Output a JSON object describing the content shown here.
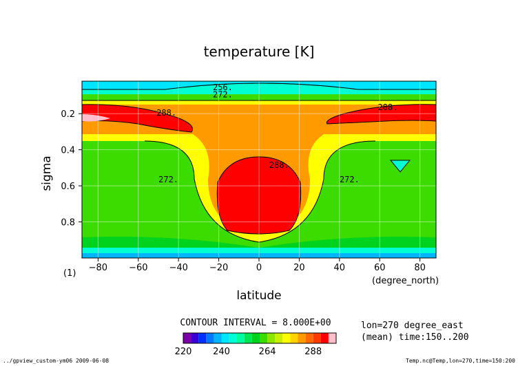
{
  "chart_data": {
    "type": "heatmap",
    "title": "temperature [K]",
    "xlabel": "latitude",
    "xunit": "(degree_north)",
    "ylabel": "sigma",
    "y_corner_label": "(1)",
    "xlim": [
      -88,
      88
    ],
    "ylim": [
      1.0,
      0.02
    ],
    "x_ticks": [
      -80,
      -60,
      -40,
      -20,
      0,
      20,
      40,
      60,
      80
    ],
    "x_tick_labels": [
      "−80",
      "−60",
      "−40",
      "−20",
      "0",
      "20",
      "40",
      "60",
      "80"
    ],
    "y_ticks": [
      0.2,
      0.4,
      0.6,
      0.8
    ],
    "y_tick_labels": [
      "0.2",
      "0.4",
      "0.6",
      "0.8"
    ],
    "grid": true,
    "contour_interval_text": "CONTOUR INTERVAL = 8.000E+00",
    "info_lines": [
      "lon=270 degree_east",
      "(mean) time:150..200"
    ],
    "footer_left": "../gpview_custom-ym06  2009-06-08",
    "footer_right": "Temp.nc@Temp,lon=270,time=150:200",
    "colorbar": {
      "levels": [
        220,
        224,
        228,
        232,
        236,
        240,
        244,
        248,
        252,
        256,
        260,
        264,
        268,
        272,
        276,
        280,
        284,
        288,
        292,
        296
      ],
      "colors": [
        "#7a00aa",
        "#3b00d6",
        "#0030ff",
        "#0078ff",
        "#00b4ff",
        "#00e6ff",
        "#00ffd2",
        "#00ff9c",
        "#00e650",
        "#00d21e",
        "#3cdc00",
        "#8ce600",
        "#c8f000",
        "#ffff00",
        "#ffd200",
        "#ff9a00",
        "#ff6a00",
        "#ff3a00",
        "#ff0000",
        "#ffc0cb"
      ],
      "tick_labels": [
        "220",
        "240",
        "264",
        "288"
      ],
      "tick_values": [
        220,
        240,
        264,
        288
      ]
    },
    "contour_labels": [
      {
        "text": "256.",
        "x": -18,
        "y": 0.07
      },
      {
        "text": "272.",
        "x": -18,
        "y": 0.11
      },
      {
        "text": "288.",
        "x": -46,
        "y": 0.21
      },
      {
        "text": "288.",
        "x": 64,
        "y": 0.18
      },
      {
        "text": "288.",
        "x": 10,
        "y": 0.5
      },
      {
        "text": "272.",
        "x": -45,
        "y": 0.58
      },
      {
        "text": "272.",
        "x": 45,
        "y": 0.58
      }
    ]
  }
}
